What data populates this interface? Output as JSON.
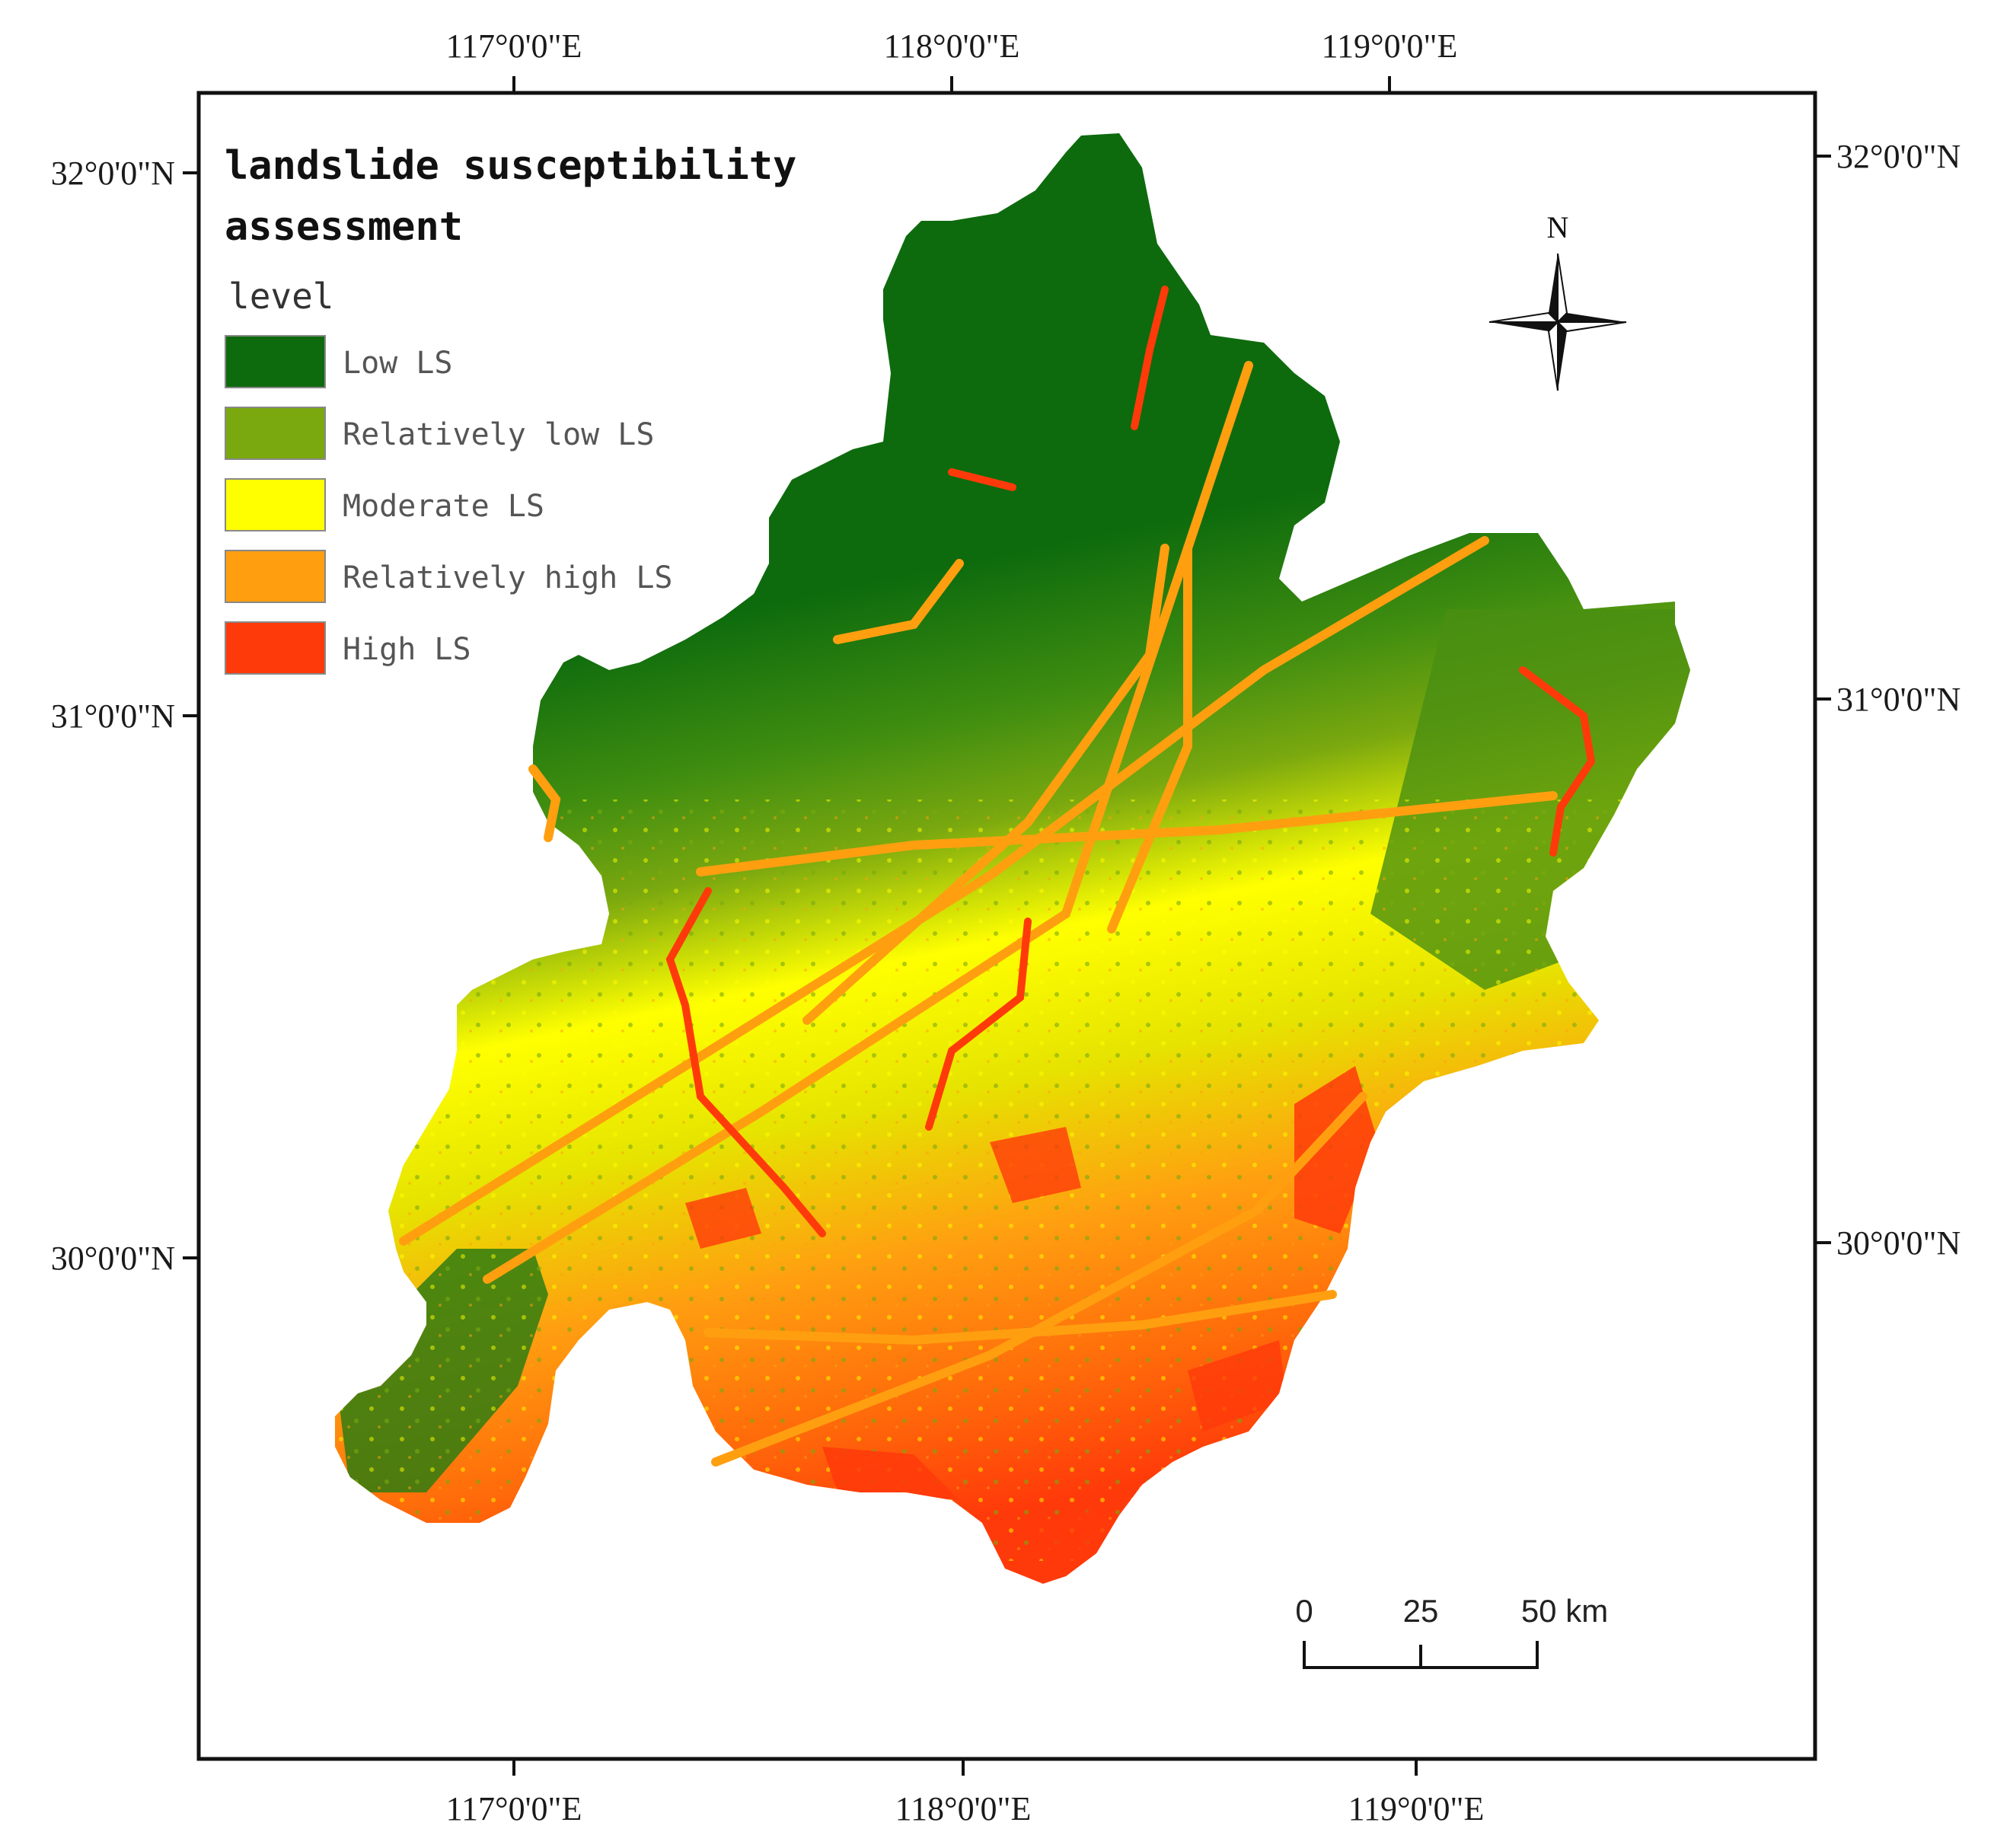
{
  "title_line1": "landslide susceptibility",
  "title_line2": "assessment",
  "legend": {
    "title": "level",
    "items": [
      {
        "label": "Low LS",
        "color": "#0d6b0d"
      },
      {
        "label": "Relatively low LS",
        "color": "#7aa80f"
      },
      {
        "label": "Moderate LS",
        "color": "#ffff00"
      },
      {
        "label": "Relatively high LS",
        "color": "#ff9f10"
      },
      {
        "label": "High LS",
        "color": "#ff3a0a"
      }
    ]
  },
  "axes": {
    "top_lon": [
      "117°0'0\"E",
      "118°0'0\"E",
      "119°0'0\"E"
    ],
    "bottom_lon": [
      "117°0'0\"E",
      "118°0'0\"E",
      "119°0'0\"E"
    ],
    "left_lat": [
      "32°0'0\"N",
      "31°0'0\"N",
      "30°0'0\"N"
    ],
    "right_lat": [
      "32°0'0\"N",
      "31°0'0\"N",
      "30°0'0\"N"
    ]
  },
  "north_arrow": {
    "label": "N",
    "icon": "compass-rose-icon"
  },
  "scale_bar": {
    "labels": [
      "0",
      "25",
      "50 km"
    ]
  }
}
